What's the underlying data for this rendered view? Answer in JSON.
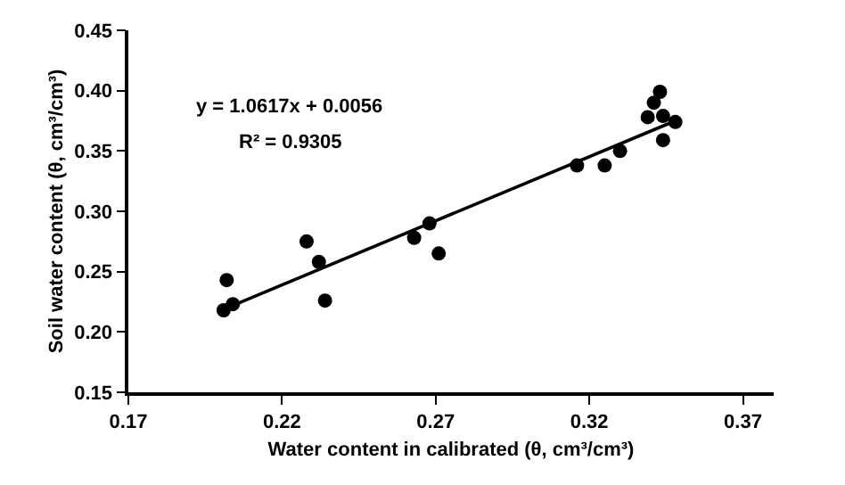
{
  "chart_data": {
    "type": "scatter",
    "xlabel": "Water content in calibrated (θ, cm³/cm³)",
    "ylabel": "Soil water content (θ, cm³/cm³)",
    "annotations": [
      "y = 1.0617x + 0.0056",
      "R² = 0.9305"
    ],
    "series": [
      {
        "color": "#000000",
        "marker": "circle",
        "x": [
          0.201,
          0.202,
          0.204,
          0.228,
          0.232,
          0.234,
          0.263,
          0.268,
          0.271,
          0.316,
          0.325,
          0.33,
          0.339,
          0.341,
          0.343,
          0.344,
          0.344,
          0.348
        ],
        "values": [
          0.218,
          0.243,
          0.223,
          0.275,
          0.258,
          0.226,
          0.278,
          0.29,
          0.265,
          0.338,
          0.338,
          0.35,
          0.378,
          0.39,
          0.399,
          0.379,
          0.359,
          0.374
        ]
      },
      {
        "type": "line",
        "color": "#000000",
        "marker": "none",
        "line_style": "solid",
        "x": [
          0.204,
          0.348
        ],
        "values": [
          0.222,
          0.375
        ]
      }
    ],
    "xlim": [
      0.17,
      0.38
    ],
    "xticks": [
      0.17,
      0.22,
      0.27,
      0.32,
      0.37
    ],
    "ylim": [
      0.15,
      0.45
    ],
    "yticks": [
      0.15,
      {
        "value": 0.2,
        "label": "0.20"
      },
      0.25,
      {
        "value": 0.3,
        "label": "0.30"
      },
      0.35,
      {
        "value": 0.4,
        "label": "0.40"
      },
      0.45
    ]
  }
}
